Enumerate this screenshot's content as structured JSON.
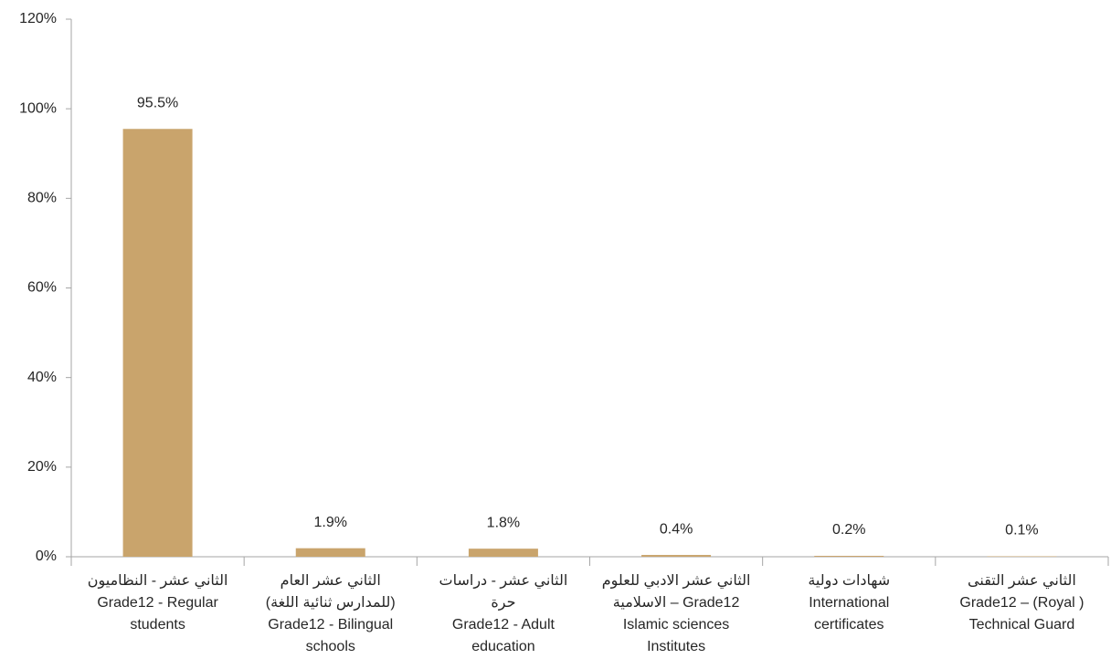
{
  "chart_data": {
    "type": "bar",
    "categories": [
      [
        "الثاني عشر - النظاميون",
        "Grade12 - Regular",
        "students"
      ],
      [
        "الثاني عشر العام",
        "(للمدارس ثنائية اللغة)",
        "Grade12 - Bilingual",
        "schools"
      ],
      [
        "الثاني عشر - دراسات",
        "حرة",
        "Grade12 - Adult",
        "education"
      ],
      [
        "الثاني عشر الادبي للعلوم",
        "الاسلامية – Grade12",
        "Islamic sciences",
        "Institutes"
      ],
      [
        "شهادات دولية",
        "International",
        "certificates"
      ],
      [
        "الثاني عشر التقنى",
        "Grade12 – (Royal )",
        "Technical Guard"
      ]
    ],
    "values": [
      95.5,
      1.9,
      1.8,
      0.4,
      0.2,
      0.1
    ],
    "value_labels": [
      "95.5%",
      "1.9%",
      "1.8%",
      "0.4%",
      "0.2%",
      "0.1%"
    ],
    "color": "#c9a46c",
    "ylim": [
      0,
      120
    ],
    "yticks": [
      {
        "value": 0,
        "label": "0%"
      },
      {
        "value": 20,
        "label": "20%"
      },
      {
        "value": 40,
        "label": "40%"
      },
      {
        "value": 60,
        "label": "60%"
      },
      {
        "value": 80,
        "label": "80%"
      },
      {
        "value": 100,
        "label": "100%"
      },
      {
        "value": 120,
        "label": "120%"
      }
    ],
    "grid": false
  }
}
